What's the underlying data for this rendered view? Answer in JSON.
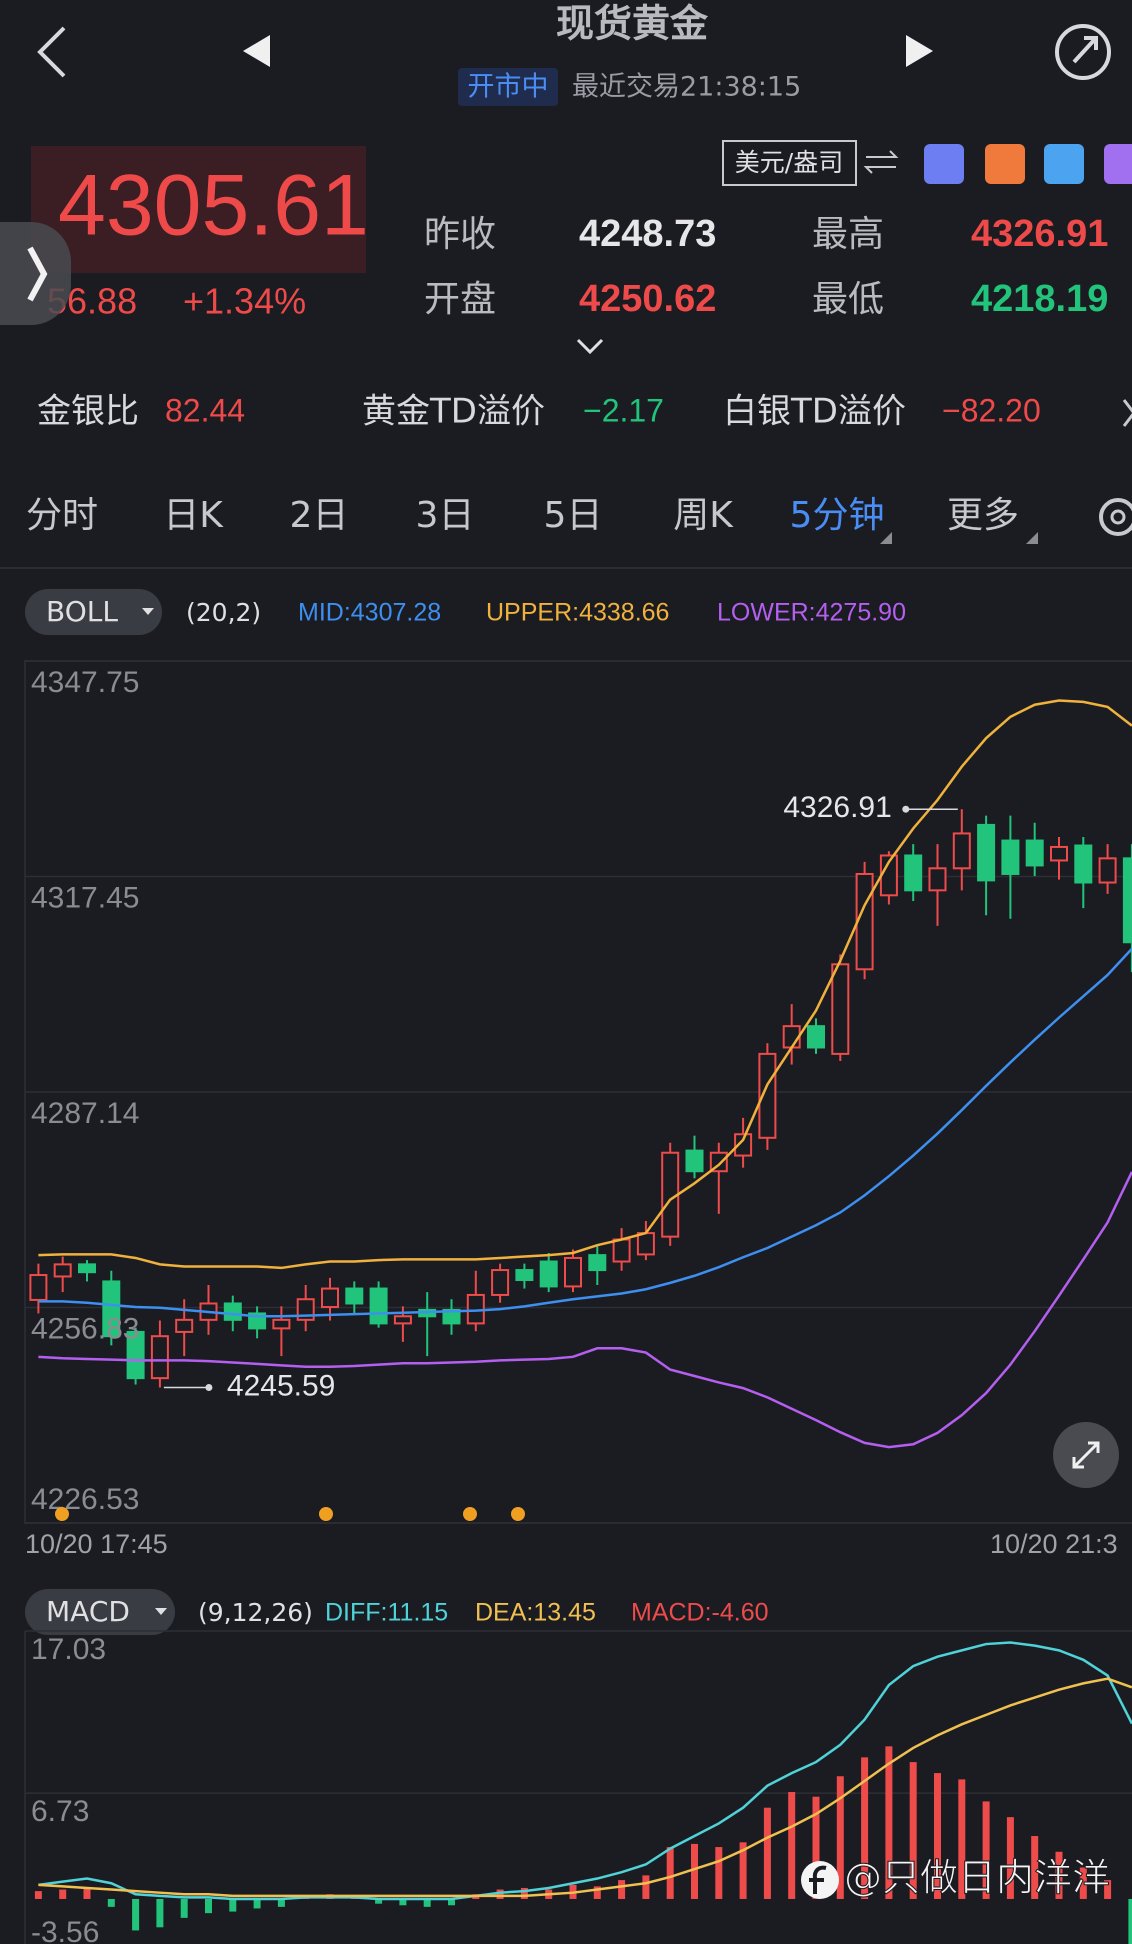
{
  "header": {
    "title": "现货黄金",
    "status": "开市中",
    "last_trade": "最近交易21:38:15"
  },
  "quote": {
    "price": "4305.61",
    "change": "56.88",
    "change_pct": "+1.34%",
    "unit": "美元/盎司",
    "stats": [
      {
        "label": "昨收",
        "value": "4248.73"
      },
      {
        "label": "最高",
        "value": "4326.91"
      },
      {
        "label": "开盘",
        "value": "4250.62"
      },
      {
        "label": "最低",
        "value": "4218.19"
      }
    ]
  },
  "ratios": [
    {
      "label": "金银比",
      "value": "82.44"
    },
    {
      "label": "黄金TD溢价",
      "value": "−2.17"
    },
    {
      "label": "白银TD溢价",
      "value": "−82.20"
    }
  ],
  "tabs": [
    {
      "label": "分时"
    },
    {
      "label": "日K"
    },
    {
      "label": "2日"
    },
    {
      "label": "3日"
    },
    {
      "label": "5日"
    },
    {
      "label": "周K"
    },
    {
      "label": "5分钟",
      "active": true,
      "menu": true
    },
    {
      "label": "更多",
      "menu": true
    }
  ],
  "watermark": "@只做日内洋洋",
  "chart_data": [
    {
      "type": "candlestick",
      "indicator": "BOLL",
      "params": "(20,2)",
      "time_labels": [
        "10/20 17:45",
        "10/20 21:3"
      ],
      "up_color": "#ee4b4b",
      "down_color": "#21c47a",
      "ylim": [
        4226.53,
        4347.75
      ],
      "yticks": [
        4347.75,
        4317.45,
        4287.14,
        4256.83,
        4226.53
      ],
      "grid": true,
      "max_label": 4326.91,
      "min_label": 4245.59,
      "open": [
        4257.9,
        4261.2,
        4262.9,
        4260.5,
        4253.4,
        4246.9,
        4253.4,
        4255.1,
        4257.4,
        4256.0,
        4253.9,
        4255.1,
        4256.9,
        4259.5,
        4259.5,
        4254.6,
        4256.5,
        4256.5,
        4254.6,
        4258.6,
        4262.1,
        4263.3,
        4259.8,
        4264.2,
        4263.3,
        4264.3,
        4266.8,
        4278.9,
        4276.0,
        4278.2,
        4280.7,
        4293.4,
        4296.4,
        4292.5,
        4304.4,
        4314.8,
        4320.4,
        4315.5,
        4318.6,
        4324.7,
        4322.5,
        4322.5,
        4319.7,
        4321.8,
        4316.6,
        4320.0
      ],
      "close": [
        4261.4,
        4262.9,
        4261.8,
        4252.8,
        4246.9,
        4252.8,
        4255.1,
        4257.4,
        4255.1,
        4253.9,
        4255.1,
        4258.0,
        4259.5,
        4257.4,
        4254.6,
        4255.6,
        4255.6,
        4254.6,
        4258.6,
        4262.1,
        4260.7,
        4259.8,
        4263.8,
        4262.1,
        4266.4,
        4267.3,
        4278.6,
        4276.0,
        4278.6,
        4281.2,
        4292.5,
        4296.4,
        4293.4,
        4305.1,
        4317.8,
        4320.4,
        4315.5,
        4318.6,
        4323.5,
        4316.9,
        4317.8,
        4319.0,
        4321.6,
        4316.6,
        4320.0,
        4308.2
      ],
      "high": [
        4263.0,
        4264.0,
        4263.5,
        4262.0,
        4254.0,
        4255.0,
        4258.0,
        4260.0,
        4258.5,
        4257.0,
        4257.0,
        4260.0,
        4261.0,
        4260.5,
        4260.5,
        4257.0,
        4259.0,
        4258.0,
        4262.0,
        4263.0,
        4263.0,
        4264.5,
        4265.0,
        4265.5,
        4268.0,
        4269.0,
        4280.0,
        4281.0,
        4280.0,
        4283.5,
        4294.0,
        4299.5,
        4297.5,
        4306.5,
        4319.5,
        4321.0,
        4322.0,
        4322.0,
        4326.91,
        4326.0,
        4326.0,
        4325.0,
        4323.0,
        4323.0,
        4322.0,
        4322.0
      ],
      "low": [
        4256.0,
        4259.0,
        4260.5,
        4251.5,
        4246.0,
        4245.59,
        4250.0,
        4253.0,
        4253.5,
        4252.5,
        4250.0,
        4253.5,
        4255.0,
        4256.0,
        4254.0,
        4252.0,
        4250.0,
        4253.0,
        4253.5,
        4257.5,
        4259.5,
        4259.0,
        4259.0,
        4260.0,
        4262.0,
        4263.5,
        4265.5,
        4275.0,
        4270.0,
        4276.5,
        4279.0,
        4291.0,
        4292.5,
        4291.5,
        4303.0,
        4313.5,
        4314.0,
        4310.5,
        4315.5,
        4312.0,
        4311.5,
        4317.5,
        4317.0,
        4313.0,
        4315.0,
        4304.0
      ],
      "series": [
        {
          "label": "MID:4307.28",
          "color": "#3d8ff0",
          "values": [
            4257.7,
            4257.7,
            4257.5,
            4257.2,
            4256.9,
            4256.8,
            4256.5,
            4256.2,
            4255.9,
            4255.6,
            4255.6,
            4255.7,
            4255.8,
            4255.9,
            4256.0,
            4256.1,
            4256.2,
            4256.3,
            4256.4,
            4256.6,
            4257.0,
            4257.5,
            4258.0,
            4258.4,
            4258.8,
            4259.4,
            4260.3,
            4261.3,
            4262.5,
            4263.9,
            4265.2,
            4266.8,
            4268.4,
            4270.2,
            4272.6,
            4275.3,
            4278.2,
            4281.3,
            4284.6,
            4288.0,
            4291.3,
            4294.5,
            4297.6,
            4300.6,
            4303.6,
            4307.28
          ]
        },
        {
          "label": "UPPER:4338.66",
          "color": "#f0b23d",
          "values": [
            4264.2,
            4264.3,
            4264.3,
            4264.3,
            4263.8,
            4262.9,
            4262.6,
            4262.6,
            4262.6,
            4262.6,
            4262.4,
            4262.9,
            4263.3,
            4263.3,
            4263.5,
            4263.6,
            4263.6,
            4263.6,
            4263.6,
            4263.8,
            4264.0,
            4264.2,
            4264.5,
            4265.6,
            4266.4,
            4267.3,
            4272.0,
            4274.3,
            4276.9,
            4280.4,
            4288.2,
            4293.4,
            4298.6,
            4305.6,
            4313.4,
            4319.5,
            4324.2,
            4328.2,
            4332.9,
            4336.9,
            4339.9,
            4341.6,
            4342.2,
            4342.0,
            4341.3,
            4338.66
          ]
        },
        {
          "label": "LOWER:4275.90",
          "color": "#b45ff0",
          "values": [
            4249.9,
            4249.7,
            4249.6,
            4249.5,
            4249.4,
            4249.4,
            4249.4,
            4249.3,
            4249.1,
            4248.9,
            4248.7,
            4248.5,
            4248.5,
            4248.6,
            4248.8,
            4249.0,
            4249.0,
            4249.1,
            4249.2,
            4249.4,
            4249.5,
            4249.6,
            4249.9,
            4251.1,
            4251.1,
            4250.5,
            4248.1,
            4247.2,
            4246.3,
            4245.5,
            4244.2,
            4242.6,
            4241.0,
            4239.3,
            4237.8,
            4237.2,
            4237.6,
            4239.2,
            4241.7,
            4244.8,
            4248.8,
            4253.5,
            4258.5,
            4263.6,
            4268.8,
            4275.9
          ]
        }
      ]
    },
    {
      "type": "macd",
      "indicator": "MACD",
      "params": "(9,12,26)",
      "up_color": "#ee4b4b",
      "down_color": "#21c47a",
      "ylim": [
        -3.56,
        17.03
      ],
      "yticks": [
        17.03,
        6.73,
        -3.56
      ],
      "grid": true,
      "histogram": {
        "label": "MACD:-4.60",
        "values": [
          0.5,
          0.6,
          0.7,
          -0.5,
          -2.0,
          -1.8,
          -1.2,
          -0.9,
          -0.8,
          -0.6,
          -0.5,
          0.2,
          0.3,
          0.2,
          -0.3,
          -0.4,
          -0.5,
          -0.4,
          0.3,
          0.6,
          0.7,
          0.6,
          0.9,
          0.8,
          1.2,
          1.5,
          3.3,
          3.5,
          3.3,
          3.6,
          5.8,
          6.8,
          6.5,
          7.8,
          9.0,
          9.7,
          8.7,
          8.0,
          7.6,
          6.2,
          5.2,
          4.0,
          3.0,
          2.0,
          1.2,
          -4.6
        ]
      },
      "series": [
        {
          "label": "DIFF:11.15",
          "color": "#4fd2d8",
          "values": [
            0.9,
            1.1,
            1.3,
            1.0,
            0.3,
            0.2,
            0.1,
            0.1,
            0.0,
            0.0,
            0.0,
            0.1,
            0.1,
            0.1,
            0.0,
            0.0,
            0.0,
            0.0,
            0.2,
            0.4,
            0.5,
            0.7,
            1.0,
            1.3,
            1.7,
            2.2,
            3.2,
            4.0,
            4.8,
            5.8,
            7.2,
            8.0,
            8.7,
            9.8,
            11.4,
            13.6,
            14.8,
            15.4,
            15.8,
            16.2,
            16.3,
            16.1,
            15.8,
            15.2,
            14.2,
            11.15
          ]
        },
        {
          "label": "DEA:13.45",
          "color": "#f0c050",
          "values": [
            0.9,
            0.8,
            0.7,
            0.6,
            0.5,
            0.4,
            0.3,
            0.3,
            0.2,
            0.2,
            0.2,
            0.2,
            0.2,
            0.2,
            0.2,
            0.2,
            0.2,
            0.2,
            0.2,
            0.2,
            0.2,
            0.3,
            0.4,
            0.6,
            0.8,
            1.0,
            1.4,
            1.9,
            2.4,
            3.1,
            3.9,
            4.6,
            5.4,
            6.4,
            7.5,
            8.6,
            9.6,
            10.4,
            11.1,
            11.7,
            12.3,
            12.8,
            13.3,
            13.7,
            14.0,
            13.45
          ]
        }
      ]
    }
  ]
}
